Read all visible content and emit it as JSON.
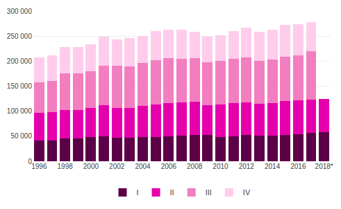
{
  "chart_data": {
    "type": "bar",
    "stacked": true,
    "categories": [
      "1996",
      null,
      "1998",
      null,
      "2000",
      null,
      "2002",
      null,
      "2004",
      null,
      "2006",
      null,
      "2008",
      null,
      "2010",
      null,
      "2012",
      null,
      "2014",
      null,
      "2016",
      null,
      "2018*"
    ],
    "series": [
      {
        "name": "I",
        "color": "#5C0048",
        "values": [
          42000,
          41000,
          45000,
          46000,
          48000,
          50000,
          47000,
          47000,
          48000,
          49000,
          50000,
          51000,
          52000,
          52000,
          49000,
          50000,
          52000,
          51000,
          51000,
          53000,
          54000,
          56000,
          58000
        ]
      },
      {
        "name": "II",
        "color": "#E600AC",
        "values": [
          55000,
          57000,
          57000,
          57000,
          58000,
          62000,
          59000,
          60000,
          62000,
          64000,
          66000,
          67000,
          67000,
          60000,
          64000,
          66000,
          66000,
          64000,
          65000,
          67000,
          67000,
          67000,
          67000
        ]
      },
      {
        "name": "III",
        "color": "#F27EC0",
        "values": [
          60000,
          63000,
          74000,
          73000,
          74000,
          79000,
          85000,
          82000,
          87000,
          89000,
          90000,
          87000,
          87000,
          86000,
          87000,
          89000,
          89000,
          86000,
          87000,
          89000,
          91000,
          97000,
          0
        ]
      },
      {
        "name": "IV",
        "color": "#FFCCEC",
        "values": [
          50000,
          50000,
          52000,
          52000,
          53000,
          58000,
          53000,
          57000,
          53000,
          58000,
          56000,
          58000,
          53000,
          51000,
          52000,
          55000,
          60000,
          58000,
          59000,
          63000,
          62000,
          58000,
          0
        ]
      }
    ],
    "ylim": [
      0,
      300000
    ],
    "yticks": [
      0,
      {
        "value": 50000,
        "label": "50 000"
      },
      {
        "value": 100000,
        "label": "100 000"
      },
      {
        "value": 150000,
        "label": "150 000"
      },
      {
        "value": 200000,
        "label": "200 000"
      },
      {
        "value": 250000,
        "label": "250 000"
      },
      {
        "value": 300000,
        "label": "300 000"
      }
    ],
    "grid": true,
    "legend": "bottom"
  }
}
